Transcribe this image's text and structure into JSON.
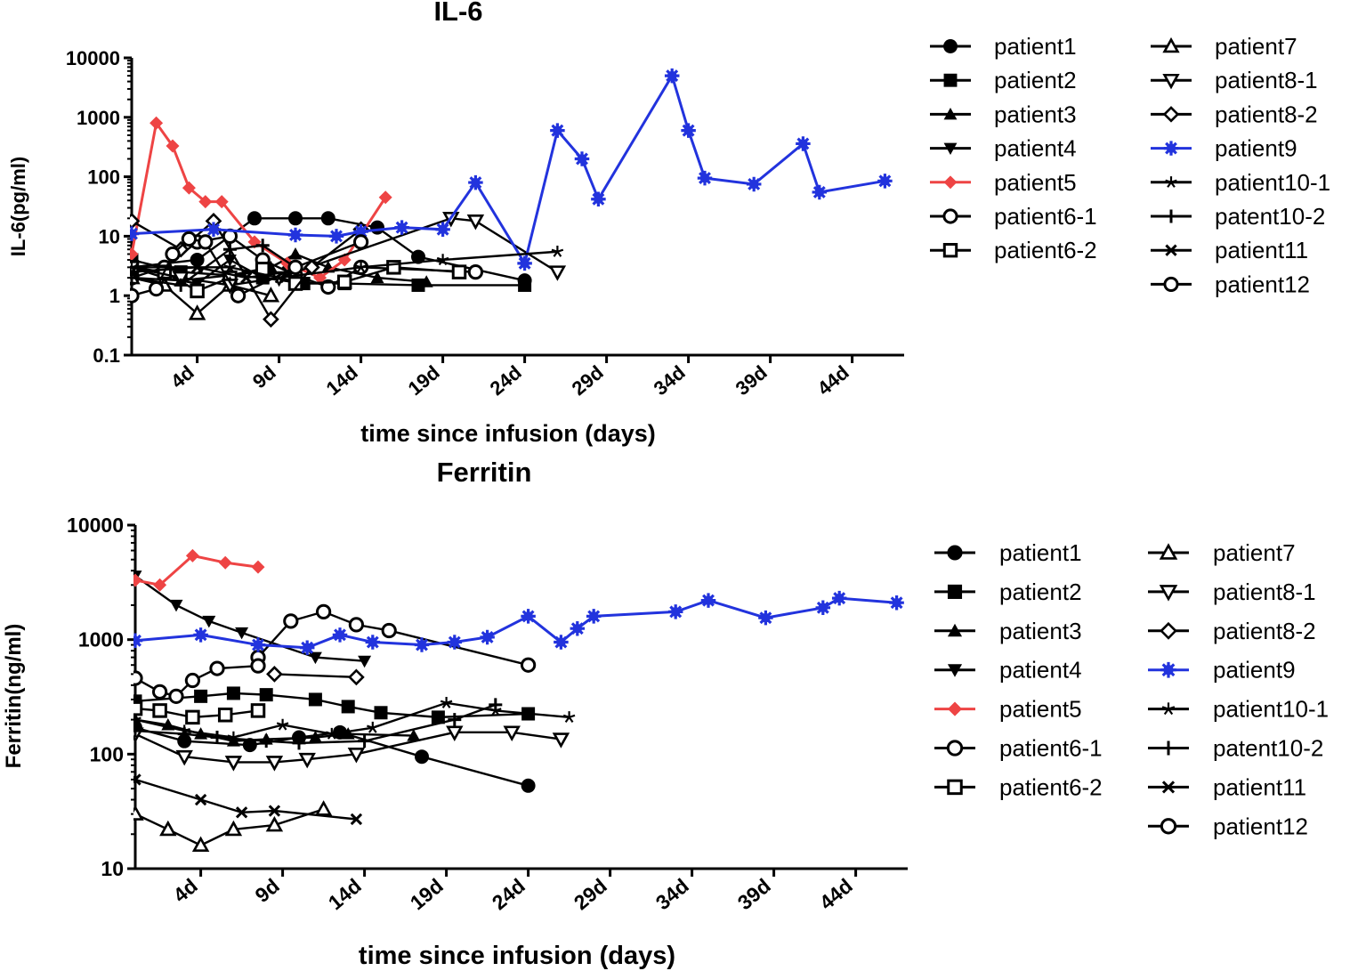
{
  "chart_data": [
    {
      "type": "line",
      "title": "IL-6",
      "xlabel": "time since infusion (days)",
      "ylabel": "IL-6(pg/ml)",
      "yscale": "log",
      "ylim": [
        0.1,
        10000
      ],
      "xlim": [
        0,
        48
      ],
      "yticks": [
        {
          "v": 10000,
          "label": "10000"
        },
        {
          "v": 1000,
          "label": "1000"
        },
        {
          "v": 100,
          "label": "100"
        },
        {
          "v": 10,
          "label": "10"
        },
        {
          "v": 1,
          "label": "1"
        },
        {
          "v": 0.1,
          "label": "0.1"
        }
      ],
      "xticks": [
        {
          "v": 4,
          "label": "4d"
        },
        {
          "v": 9,
          "label": "9d"
        },
        {
          "v": 14,
          "label": "14d"
        },
        {
          "v": 19,
          "label": "19d"
        },
        {
          "v": 24,
          "label": "24d"
        },
        {
          "v": 29,
          "label": "29d"
        },
        {
          "v": 34,
          "label": "34d"
        },
        {
          "v": 39,
          "label": "39d"
        },
        {
          "v": 44,
          "label": "44d"
        }
      ],
      "legend_position": "right",
      "series": [
        {
          "name": "patient1",
          "marker": "circle",
          "color": "#000000",
          "x": [
            0,
            4,
            7.5,
            10,
            12,
            15,
            17.5,
            24
          ],
          "y": [
            3,
            4,
            20,
            20,
            20,
            14,
            4.5,
            1.8
          ]
        },
        {
          "name": "patient2",
          "marker": "square",
          "color": "#000000",
          "x": [
            0,
            3,
            8,
            10.5,
            13,
            17.5,
            24
          ],
          "y": [
            4,
            2.5,
            2,
            1.6,
            1.6,
            1.5,
            1.5
          ]
        },
        {
          "name": "patient3",
          "marker": "triangle",
          "color": "#000000",
          "x": [
            0,
            3,
            6,
            8.5,
            10,
            12,
            15,
            18
          ],
          "y": [
            2,
            1.8,
            2.2,
            3,
            5,
            3,
            2,
            1.7
          ]
        },
        {
          "name": "patient4",
          "marker": "triangle-down",
          "color": "#000000",
          "x": [
            0,
            2,
            4,
            6,
            8,
            10
          ],
          "y": [
            3,
            2,
            1.6,
            4,
            2,
            1.8
          ]
        },
        {
          "name": "patient5",
          "marker": "diamond",
          "color": "#ee4444",
          "x": [
            0,
            1.5,
            2.5,
            3.5,
            4.5,
            5.5,
            7.5,
            9.5,
            11.5,
            13,
            15.5
          ],
          "y": [
            5,
            800,
            330,
            65,
            38,
            38,
            8,
            3.5,
            2,
            4,
            45
          ]
        },
        {
          "name": "patient6-1",
          "marker": "circle-open",
          "color": "#000000",
          "x": [
            0,
            2,
            4,
            6,
            8,
            10,
            12,
            14,
            21
          ],
          "y": [
            2,
            3,
            8,
            10,
            4,
            2.2,
            1.4,
            3,
            2.5
          ]
        },
        {
          "name": "patient6-2",
          "marker": "square-open",
          "color": "#000000",
          "x": [
            0,
            2,
            4,
            6,
            8,
            10,
            13,
            16,
            20
          ],
          "y": [
            3,
            2.5,
            1.2,
            2,
            2.8,
            1.6,
            1.7,
            3,
            2.5
          ]
        },
        {
          "name": "patient7",
          "marker": "triangle-open",
          "color": "#000000",
          "x": [
            0,
            2,
            4,
            6,
            8.5
          ],
          "y": [
            2,
            1.5,
            0.5,
            1.5,
            1
          ]
        },
        {
          "name": "patient8-1",
          "marker": "triangle-down-open",
          "color": "#000000",
          "x": [
            0,
            3,
            6,
            9,
            19.5,
            21,
            26
          ],
          "y": [
            3,
            2,
            1.5,
            2,
            20,
            18,
            2.5
          ]
        },
        {
          "name": "patient8-2",
          "marker": "diamond-open",
          "color": "#000000",
          "x": [
            0,
            3,
            5,
            8.5,
            11,
            14
          ],
          "y": [
            18,
            6,
            18,
            0.4,
            3,
            13
          ]
        },
        {
          "name": "patient9",
          "marker": "star",
          "color": "#2233dd",
          "x": [
            0,
            5,
            10,
            12.5,
            14,
            16.5,
            19,
            21,
            24,
            26,
            27.5,
            28.5,
            33,
            34,
            35,
            38,
            41,
            42,
            46
          ],
          "y": [
            11,
            13,
            10.5,
            10,
            12,
            14,
            13,
            80,
            3.5,
            600,
            200,
            42,
            5000,
            600,
            95,
            75,
            360,
            55,
            85
          ]
        },
        {
          "name": "patient10-1",
          "marker": "asterisk",
          "color": "#000000",
          "x": [
            0,
            6,
            9,
            14,
            19,
            26
          ],
          "y": [
            3,
            3,
            2,
            3,
            4,
            5.5
          ]
        },
        {
          "name": "patent10-2",
          "marker": "plus",
          "color": "#000000",
          "x": [
            0,
            3,
            6,
            8,
            10
          ],
          "y": [
            2,
            1.5,
            6,
            7,
            3
          ]
        },
        {
          "name": "patient11",
          "marker": "x",
          "color": "#000000",
          "x": [
            0,
            4,
            7,
            9.5
          ],
          "y": [
            2.5,
            3,
            2,
            2.5
          ]
        },
        {
          "name": "patient12",
          "marker": "circle-open",
          "color": "#000000",
          "x": [
            0,
            1.5,
            2.5,
            3.5,
            4.5,
            6.5,
            10,
            14
          ],
          "y": [
            1,
            1.3,
            5,
            9,
            8,
            1,
            3,
            8
          ]
        }
      ]
    },
    {
      "type": "line",
      "title": "Ferritin",
      "xlabel": "time since infusion (days)",
      "ylabel": "Ferritin(ng/ml)",
      "yscale": "log",
      "ylim": [
        10,
        10000
      ],
      "xlim": [
        0,
        48
      ],
      "yticks": [
        {
          "v": 10000,
          "label": "10000"
        },
        {
          "v": 1000,
          "label": "1000"
        },
        {
          "v": 100,
          "label": "100"
        },
        {
          "v": 10,
          "label": "10"
        }
      ],
      "xticks": [
        {
          "v": 4,
          "label": "4d"
        },
        {
          "v": 9,
          "label": "9d"
        },
        {
          "v": 14,
          "label": "14d"
        },
        {
          "v": 19,
          "label": "19d"
        },
        {
          "v": 24,
          "label": "24d"
        },
        {
          "v": 29,
          "label": "29d"
        },
        {
          "v": 34,
          "label": "34d"
        },
        {
          "v": 39,
          "label": "39d"
        },
        {
          "v": 44,
          "label": "44d"
        }
      ],
      "legend_position": "right",
      "series": [
        {
          "name": "patient1",
          "marker": "circle",
          "color": "#000000",
          "x": [
            0,
            3,
            7,
            10,
            12.5,
            17.5,
            24
          ],
          "y": [
            170,
            130,
            120,
            140,
            155,
            95,
            53
          ]
        },
        {
          "name": "patient2",
          "marker": "square",
          "color": "#000000",
          "x": [
            0,
            4,
            6,
            8,
            11,
            13,
            15,
            18.5,
            24
          ],
          "y": [
            290,
            320,
            340,
            330,
            300,
            260,
            230,
            210,
            225
          ]
        },
        {
          "name": "patient3",
          "marker": "triangle",
          "color": "#000000",
          "x": [
            0,
            2,
            4,
            6,
            8,
            11,
            13,
            17
          ],
          "y": [
            200,
            180,
            150,
            130,
            135,
            140,
            150,
            145
          ]
        },
        {
          "name": "patient4",
          "marker": "triangle-down",
          "color": "#000000",
          "x": [
            0,
            2.5,
            4.5,
            6.5,
            11,
            14
          ],
          "y": [
            3600,
            2000,
            1450,
            1150,
            700,
            650
          ]
        },
        {
          "name": "patient5",
          "marker": "diamond",
          "color": "#ee4444",
          "x": [
            0,
            1.5,
            3.5,
            5.5,
            7.5
          ],
          "y": [
            3300,
            3000,
            5400,
            4700,
            4300
          ]
        },
        {
          "name": "patient6-1",
          "marker": "circle-open",
          "color": "#000000",
          "x": [
            7.5,
            9.5,
            11.5,
            13.5,
            15.5,
            24
          ],
          "y": [
            700,
            1450,
            1750,
            1350,
            1200,
            600
          ]
        },
        {
          "name": "patient6-2",
          "marker": "square-open",
          "color": "#000000",
          "x": [
            0,
            1.5,
            3.5,
            5.5,
            7.5
          ],
          "y": [
            250,
            240,
            210,
            220,
            240
          ]
        },
        {
          "name": "patient7",
          "marker": "triangle-open",
          "color": "#000000",
          "x": [
            0,
            2,
            4,
            6,
            8.5,
            11.5
          ],
          "y": [
            30,
            22,
            16,
            22,
            24,
            33
          ]
        },
        {
          "name": "patient8-1",
          "marker": "triangle-down-open",
          "color": "#000000",
          "x": [
            0,
            3,
            6,
            8.5,
            10.5,
            13.5,
            19.5,
            23,
            26
          ],
          "y": [
            150,
            95,
            85,
            85,
            90,
            100,
            155,
            155,
            135
          ]
        },
        {
          "name": "patient8-2",
          "marker": "diamond-open",
          "color": "#000000",
          "x": [
            8.5,
            13.5
          ],
          "y": [
            500,
            470
          ]
        },
        {
          "name": "patient9",
          "marker": "star",
          "color": "#2233dd",
          "x": [
            0,
            4,
            7.5,
            10.5,
            12.5,
            14.5,
            17.5,
            19.5,
            21.5,
            24,
            26,
            27,
            28,
            33,
            35,
            38.5,
            42,
            43,
            46.5
          ],
          "y": [
            980,
            1100,
            900,
            850,
            1100,
            950,
            900,
            950,
            1050,
            1600,
            950,
            1250,
            1600,
            1750,
            2200,
            1550,
            1900,
            2300,
            2100
          ]
        },
        {
          "name": "patient10-1",
          "marker": "asterisk",
          "color": "#000000",
          "x": [
            0,
            3,
            6,
            9,
            12,
            14.5,
            19,
            22,
            26.5
          ],
          "y": [
            200,
            160,
            140,
            180,
            150,
            170,
            280,
            240,
            210
          ]
        },
        {
          "name": "patent10-2",
          "marker": "plus",
          "color": "#000000",
          "x": [
            0,
            3,
            5,
            8,
            10,
            14,
            19.5,
            22
          ],
          "y": [
            160,
            150,
            140,
            130,
            125,
            130,
            200,
            270
          ]
        },
        {
          "name": "patient11",
          "marker": "x",
          "color": "#000000",
          "x": [
            0,
            4,
            6.5,
            8.5,
            13.5
          ],
          "y": [
            60,
            40,
            31,
            32,
            27
          ]
        },
        {
          "name": "patient12",
          "marker": "circle-open",
          "color": "#000000",
          "x": [
            0,
            1.5,
            2.5,
            3.5,
            5,
            7.5
          ],
          "y": [
            460,
            350,
            320,
            440,
            560,
            590
          ]
        }
      ]
    }
  ]
}
